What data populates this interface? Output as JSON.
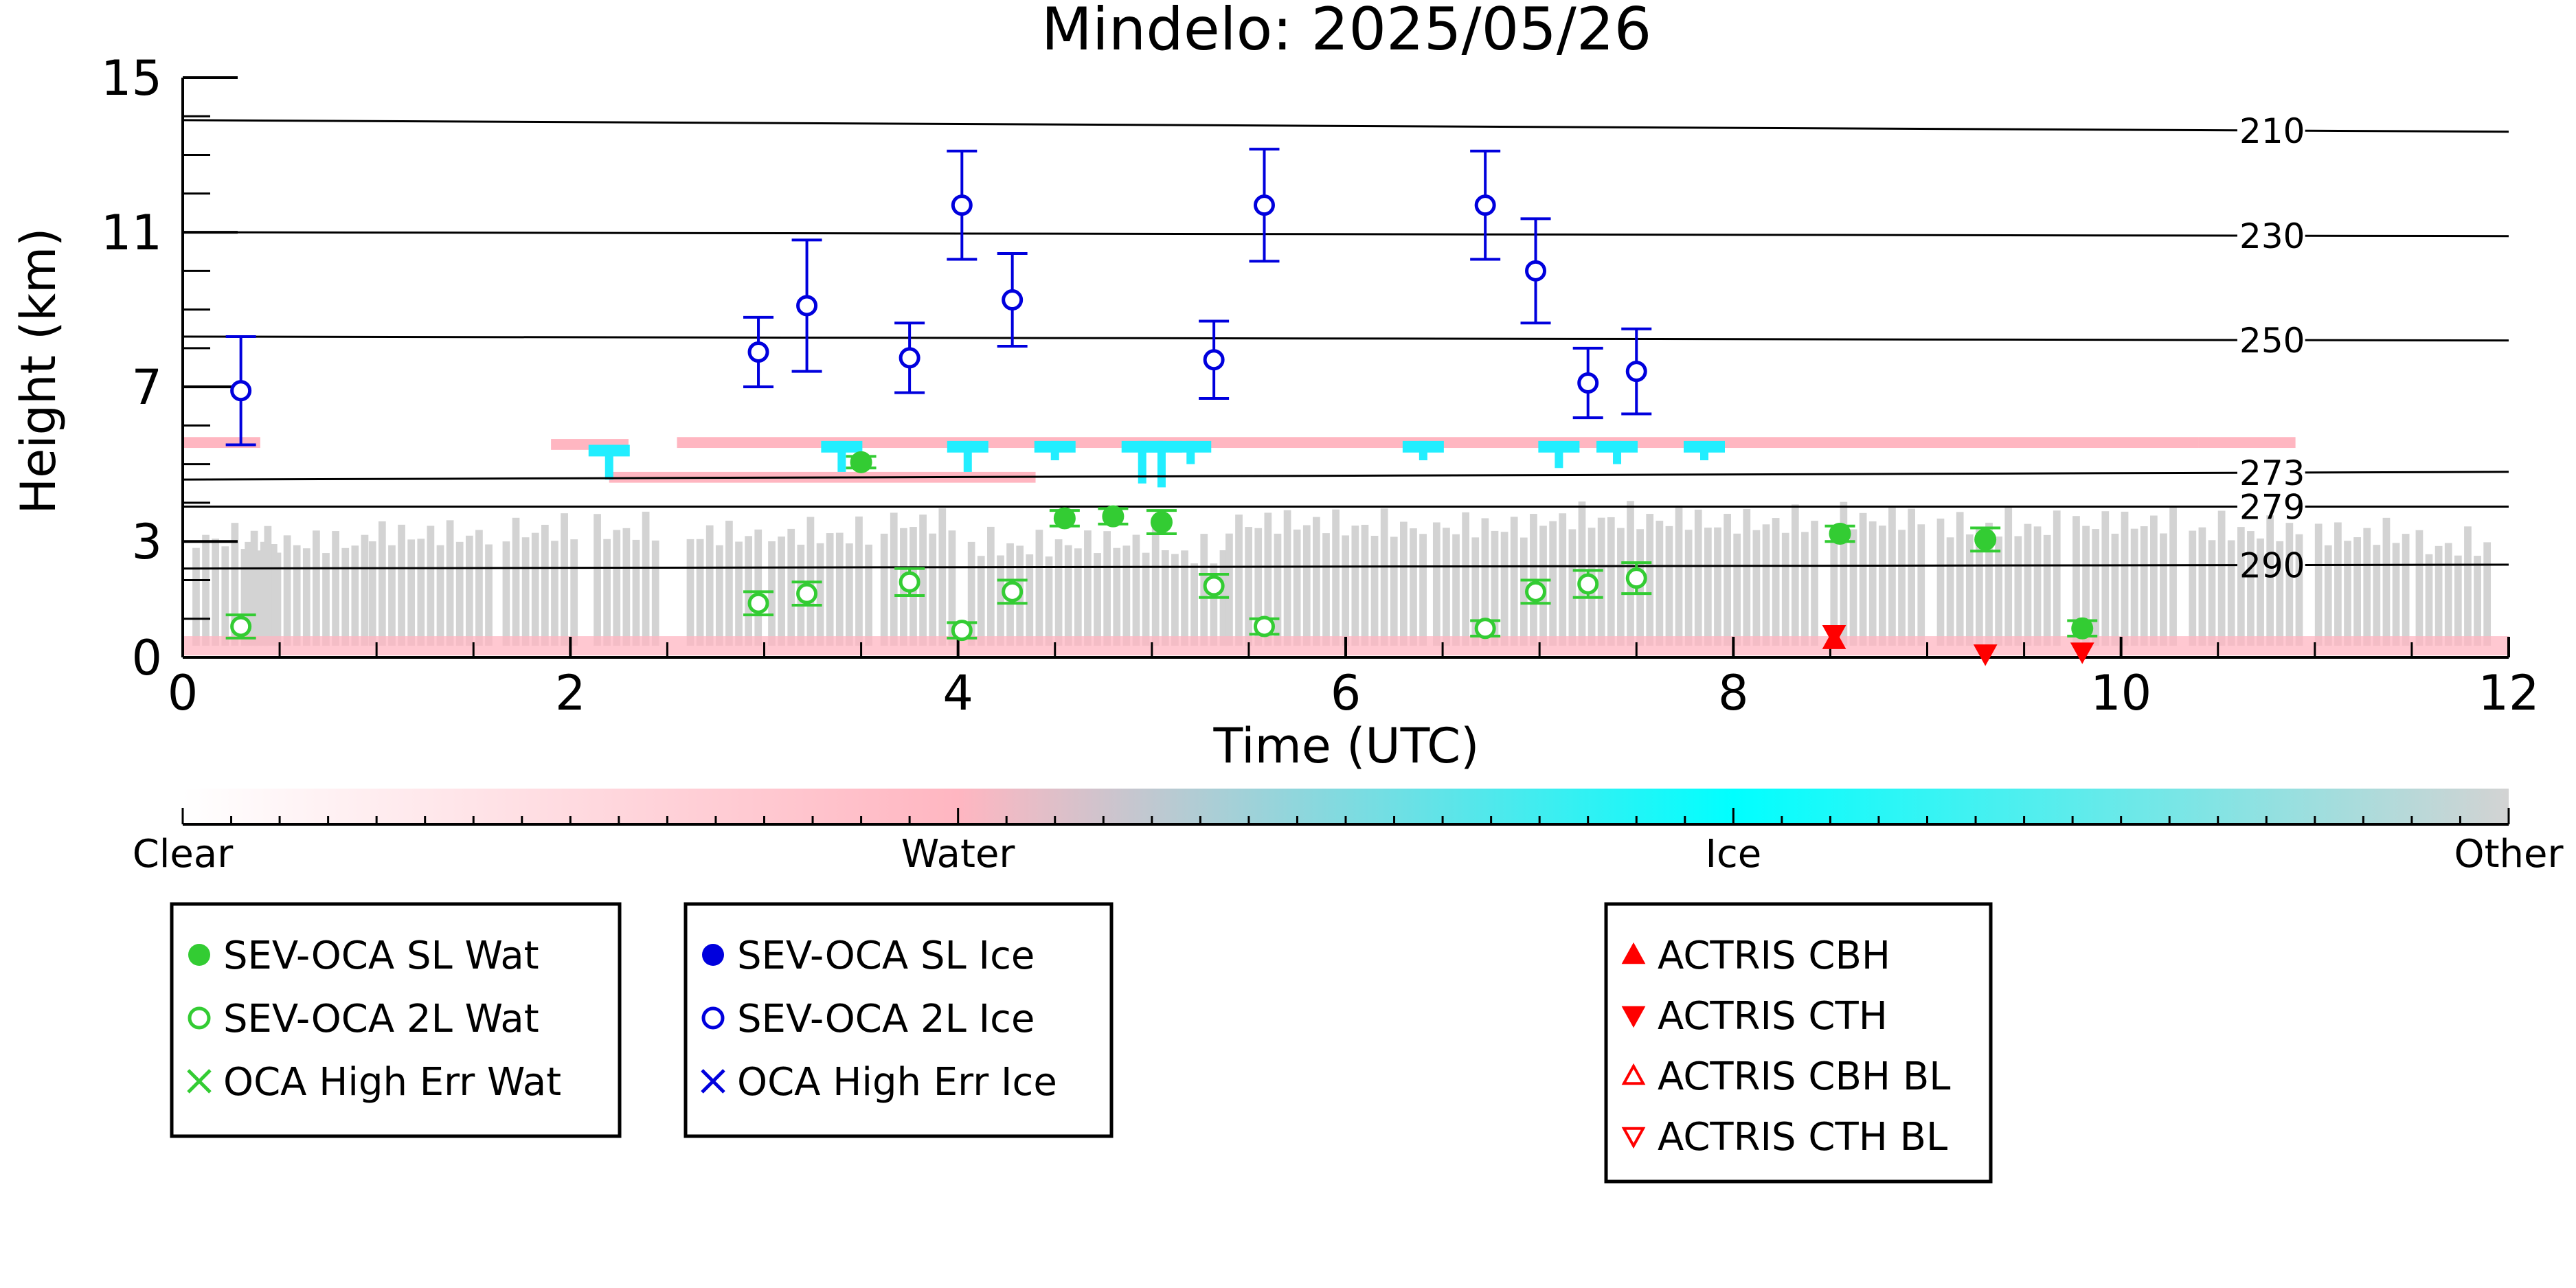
{
  "chart_data": {
    "type": "scatter",
    "title": "Mindelo: 2025/05/26",
    "xlabel": "Time (UTC)",
    "ylabel": "Height (km)",
    "xlim": [
      0,
      12
    ],
    "ylim": [
      0,
      15
    ],
    "xticks": [
      0,
      2,
      4,
      6,
      8,
      10,
      12
    ],
    "yticks": [
      0,
      3,
      7,
      11,
      15
    ],
    "temperature_isolines": [
      {
        "label": "210",
        "y_start": 13.9,
        "y_end": 13.6
      },
      {
        "label": "230",
        "y_start": 11.0,
        "y_end": 10.9
      },
      {
        "label": "250",
        "y_start": 8.3,
        "y_end": 8.2
      },
      {
        "label": "273",
        "y_start": 4.6,
        "y_end": 4.8
      },
      {
        "label": "279",
        "y_start": 3.9,
        "y_end": 3.9
      },
      {
        "label": "290",
        "y_start": 2.3,
        "y_end": 2.4
      }
    ],
    "colorbar": {
      "labels": [
        "Clear",
        "Water",
        "Ice",
        "Other"
      ],
      "colors": [
        "#ffffff",
        "#ffb6c1",
        "#00ffff",
        "#d3d3d3"
      ]
    },
    "legends": [
      {
        "entries": [
          {
            "label": "SEV-OCA SL Wat",
            "marker": "filled-circle",
            "color": "#33cc33"
          },
          {
            "label": "SEV-OCA 2L Wat",
            "marker": "open-circle",
            "color": "#33cc33"
          },
          {
            "label": "OCA High Err Wat",
            "marker": "x",
            "color": "#33cc33"
          }
        ]
      },
      {
        "entries": [
          {
            "label": "SEV-OCA SL Ice",
            "marker": "filled-circle",
            "color": "#0000dd"
          },
          {
            "label": "SEV-OCA 2L Ice",
            "marker": "open-circle",
            "color": "#0000dd"
          },
          {
            "label": "OCA High Err Ice",
            "marker": "x",
            "color": "#0000dd"
          }
        ]
      },
      {
        "entries": [
          {
            "label": "ACTRIS CBH",
            "marker": "triangle-up-filled",
            "color": "#ff0000"
          },
          {
            "label": "ACTRIS CTH",
            "marker": "triangle-down-filled",
            "color": "#ff0000"
          },
          {
            "label": "ACTRIS CBH BL",
            "marker": "triangle-up-open",
            "color": "#ff0000"
          },
          {
            "label": "ACTRIS CTH BL",
            "marker": "triangle-down-open",
            "color": "#ff0000"
          }
        ]
      }
    ],
    "series": [
      {
        "name": "SEV-OCA SL Wat",
        "color": "#33cc33",
        "points": [
          {
            "x": 3.5,
            "y": 5.05,
            "err": 0.15
          },
          {
            "x": 4.55,
            "y": 3.6,
            "err": 0.2
          },
          {
            "x": 4.8,
            "y": 3.65,
            "err": 0.2
          },
          {
            "x": 5.05,
            "y": 3.5,
            "err": 0.3
          },
          {
            "x": 8.55,
            "y": 3.2,
            "err": 0.2
          },
          {
            "x": 9.3,
            "y": 3.05,
            "err": 0.3
          },
          {
            "x": 9.8,
            "y": 0.75,
            "err": 0.2
          }
        ]
      },
      {
        "name": "SEV-OCA 2L Wat",
        "color": "#33cc33",
        "points": [
          {
            "x": 0.3,
            "y": 0.8,
            "err": 0.3
          },
          {
            "x": 2.97,
            "y": 1.4,
            "err": 0.3
          },
          {
            "x": 3.22,
            "y": 1.65,
            "err": 0.3
          },
          {
            "x": 3.75,
            "y": 1.95,
            "err": 0.35
          },
          {
            "x": 4.02,
            "y": 0.7,
            "err": 0.2
          },
          {
            "x": 4.28,
            "y": 1.7,
            "err": 0.3
          },
          {
            "x": 5.32,
            "y": 1.85,
            "err": 0.3
          },
          {
            "x": 5.58,
            "y": 0.8,
            "err": 0.2
          },
          {
            "x": 6.72,
            "y": 0.75,
            "err": 0.2
          },
          {
            "x": 6.98,
            "y": 1.7,
            "err": 0.3
          },
          {
            "x": 7.25,
            "y": 1.9,
            "err": 0.35
          },
          {
            "x": 7.5,
            "y": 2.05,
            "err": 0.4
          }
        ]
      },
      {
        "name": "SEV-OCA 2L Ice",
        "color": "#0000dd",
        "points": [
          {
            "x": 0.3,
            "y": 6.9,
            "err": 1.4
          },
          {
            "x": 2.97,
            "y": 7.9,
            "err": 0.9
          },
          {
            "x": 3.22,
            "y": 9.1,
            "err": 1.7
          },
          {
            "x": 3.75,
            "y": 7.75,
            "err": 0.9
          },
          {
            "x": 4.02,
            "y": 11.7,
            "err": 1.4
          },
          {
            "x": 4.28,
            "y": 9.25,
            "err": 1.2
          },
          {
            "x": 5.32,
            "y": 7.7,
            "err": 1.0
          },
          {
            "x": 5.58,
            "y": 11.7,
            "err": 1.45
          },
          {
            "x": 6.72,
            "y": 11.7,
            "err": 1.4
          },
          {
            "x": 6.98,
            "y": 10.0,
            "err": 1.35
          },
          {
            "x": 7.25,
            "y": 7.1,
            "err": 0.9
          },
          {
            "x": 7.5,
            "y": 7.4,
            "err": 1.1
          }
        ]
      },
      {
        "name": "ACTRIS CBH",
        "color": "#ff0000",
        "points": [
          {
            "x": 8.52,
            "y": 0.45
          }
        ]
      },
      {
        "name": "ACTRIS CTH",
        "color": "#ff0000",
        "points": [
          {
            "x": 8.52,
            "y": 0.6
          },
          {
            "x": 9.3,
            "y": 0.1
          },
          {
            "x": 9.8,
            "y": 0.15
          }
        ]
      }
    ],
    "cloud_mask": {
      "other_columns": [
        [
          0.05,
          0.45,
          3.8
        ],
        [
          0.32,
          0.95,
          3.7
        ],
        [
          0.96,
          1.6,
          3.9
        ],
        [
          1.65,
          2.05,
          4.0
        ],
        [
          2.12,
          2.45,
          4.0
        ],
        [
          2.6,
          2.98,
          3.9
        ],
        [
          3.02,
          3.55,
          3.9
        ],
        [
          3.6,
          3.98,
          4.2
        ],
        [
          4.05,
          4.5,
          3.6
        ],
        [
          4.55,
          5.05,
          3.7
        ],
        [
          5.1,
          5.35,
          3.4
        ],
        [
          5.38,
          5.9,
          4.2
        ],
        [
          5.93,
          6.4,
          4.1
        ],
        [
          6.45,
          6.95,
          4.1
        ],
        [
          7.0,
          7.45,
          4.3
        ],
        [
          7.5,
          7.8,
          4.3
        ],
        [
          7.85,
          8.45,
          4.2
        ],
        [
          8.5,
          9.0,
          4.3
        ],
        [
          9.05,
          9.7,
          4.1
        ],
        [
          9.75,
          10.3,
          4.2
        ],
        [
          10.35,
          10.95,
          4.0
        ],
        [
          11.0,
          11.5,
          3.9
        ],
        [
          11.52,
          11.9,
          3.6
        ]
      ],
      "water_layers": [
        [
          0.0,
          0.4,
          5.6
        ],
        [
          1.9,
          2.3,
          5.55
        ],
        [
          2.55,
          10.4,
          5.6
        ],
        [
          10.4,
          10.9,
          5.6
        ],
        [
          2.2,
          4.4,
          4.7
        ]
      ],
      "ice_features": [
        [
          2.2,
          5.5,
          4.6
        ],
        [
          3.4,
          5.6,
          4.8
        ],
        [
          4.05,
          5.6,
          4.8
        ],
        [
          4.5,
          5.6,
          5.1
        ],
        [
          4.95,
          5.6,
          4.5
        ],
        [
          5.05,
          5.6,
          4.4
        ],
        [
          5.2,
          5.6,
          5.0
        ],
        [
          6.4,
          5.6,
          5.1
        ],
        [
          7.1,
          5.6,
          4.9
        ],
        [
          7.4,
          5.6,
          5.0
        ],
        [
          7.85,
          5.6,
          5.1
        ]
      ]
    }
  }
}
